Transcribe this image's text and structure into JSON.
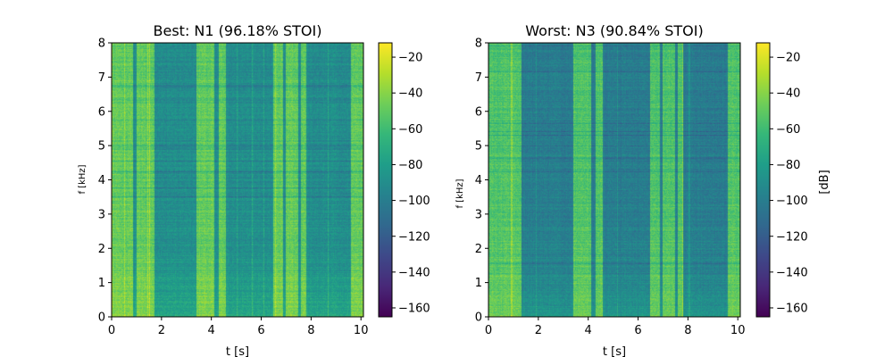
{
  "figure": {
    "colormap": "viridis",
    "colors": {
      "viridis_stops": [
        "#440154",
        "#482878",
        "#3e4989",
        "#31688e",
        "#26828e",
        "#1f9e89",
        "#35b779",
        "#6ece58",
        "#b5de2b",
        "#fde725"
      ],
      "axes": "#000000",
      "background": "#ffffff"
    }
  },
  "chart_data": [
    {
      "type": "heatmap",
      "title": "Best: N1 (96.18% STOI)",
      "xlabel": "t [s]",
      "ylabel": "f [kHz]",
      "xlim": [
        0,
        10.1
      ],
      "ylim": [
        0,
        8
      ],
      "xticks": [
        0,
        2,
        4,
        6,
        8,
        10
      ],
      "yticks": [
        0,
        1,
        2,
        3,
        4,
        5,
        6,
        7,
        8
      ],
      "colorbar": {
        "label": "",
        "range": [
          -165,
          -12
        ],
        "ticks": [
          -160,
          -140,
          -120,
          -100,
          -80,
          -60,
          -40,
          -20
        ],
        "tick_labels": [
          "−160",
          "−140",
          "−120",
          "−100",
          "−80",
          "−60",
          "−40",
          "−20"
        ]
      },
      "level_profile_db": {
        "background": -85,
        "speech_intervals_s": [
          [
            0.0,
            0.85
          ],
          [
            1.0,
            1.7
          ],
          [
            3.4,
            4.1
          ],
          [
            4.3,
            4.6
          ],
          [
            6.5,
            6.9
          ],
          [
            7.0,
            7.5
          ],
          [
            7.6,
            7.8
          ],
          [
            9.6,
            10.1
          ]
        ],
        "speech_level_db": -50
      }
    },
    {
      "type": "heatmap",
      "title": "Worst: N3 (90.84% STOI)",
      "xlabel": "t [s]",
      "ylabel": "f [kHz]",
      "xlim": [
        0,
        10.1
      ],
      "ylim": [
        0,
        8
      ],
      "xticks": [
        0,
        2,
        4,
        6,
        8,
        10
      ],
      "yticks": [
        0,
        1,
        2,
        3,
        4,
        5,
        6,
        7,
        8
      ],
      "colorbar": {
        "label": "[dB]",
        "range": [
          -165,
          -12
        ],
        "ticks": [
          -160,
          -140,
          -120,
          -100,
          -80,
          -60,
          -40,
          -20
        ],
        "tick_labels": [
          "−160",
          "−140",
          "−120",
          "−100",
          "−80",
          "−60",
          "−40",
          "−20"
        ]
      },
      "level_profile_db": {
        "background": -95,
        "speech_intervals_s": [
          [
            0.0,
            1.3
          ],
          [
            3.4,
            4.1
          ],
          [
            4.3,
            4.6
          ],
          [
            6.5,
            6.9
          ],
          [
            7.0,
            7.5
          ],
          [
            7.6,
            7.8
          ],
          [
            9.6,
            10.1
          ]
        ],
        "speech_level_db": -55
      }
    }
  ]
}
